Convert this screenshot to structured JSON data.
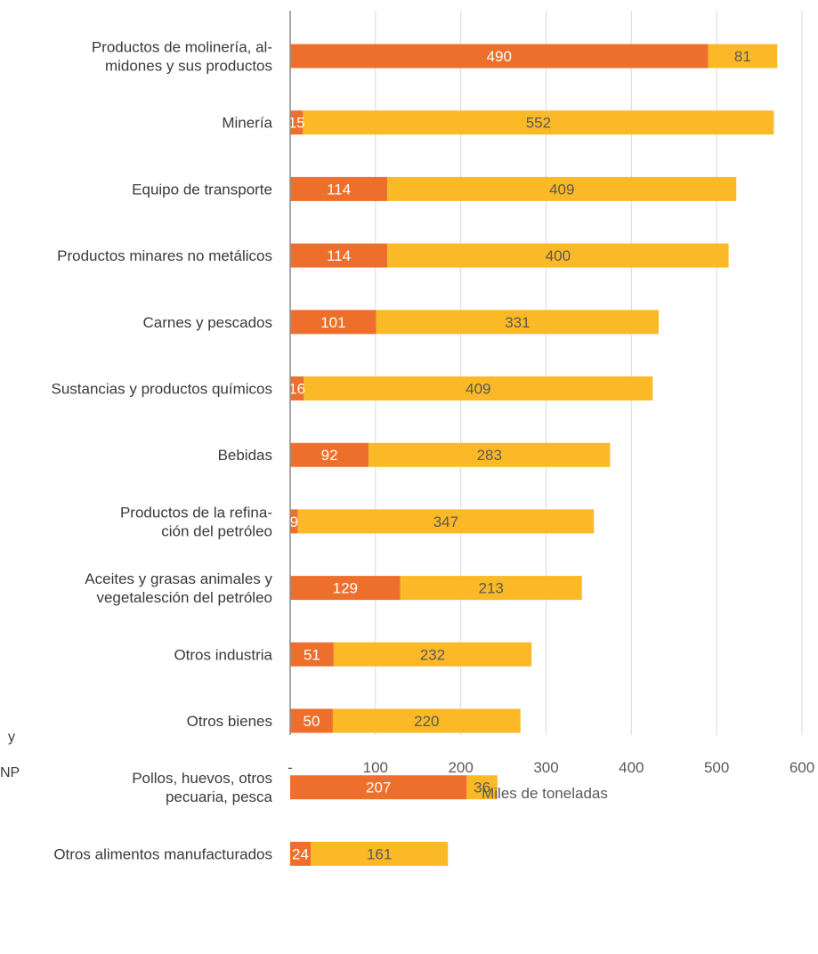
{
  "chart_data": {
    "type": "bar",
    "orientation": "horizontal",
    "stacked": true,
    "categories": [
      [
        "Productos de molinería, al-",
        "midones y sus productos"
      ],
      [
        "Minería"
      ],
      [
        "Equipo de transporte"
      ],
      [
        "Productos minares no metálicos"
      ],
      [
        "Carnes y pescados"
      ],
      [
        "Sustancias y productos químicos"
      ],
      [
        "Bebidas"
      ],
      [
        "Productos de la refina-",
        "ción del petróleo"
      ],
      [
        "Aceites y grasas animales y",
        "vegetalesción del petróleo"
      ],
      [
        "Otros industria"
      ],
      [
        "Otros bienes"
      ],
      [
        "Pollos, huevos, otros",
        "pecuaria, pesca"
      ],
      [
        "Otros alimentos manufacturados"
      ]
    ],
    "series": [
      {
        "values": [
          490,
          15,
          114,
          114,
          101,
          16,
          92,
          9,
          129,
          51,
          50,
          207,
          24
        ],
        "color": "#EE6F2B"
      },
      {
        "values": [
          81,
          552,
          409,
          400,
          331,
          409,
          283,
          347,
          213,
          232,
          220,
          36,
          161
        ],
        "color": "#FBB827"
      }
    ],
    "xlabel": "Miles de toneladas",
    "xlim": [
      0,
      600
    ],
    "xticks": [
      0,
      100,
      200,
      300,
      400,
      500,
      600
    ],
    "xtick_labels": [
      "-",
      "100",
      "200",
      "300",
      "400",
      "500",
      "600"
    ],
    "grid": "vertical",
    "label_colors": {
      "series0": "#ffffff",
      "series1": "#595959"
    }
  },
  "fragments": [
    "y",
    "NP"
  ]
}
